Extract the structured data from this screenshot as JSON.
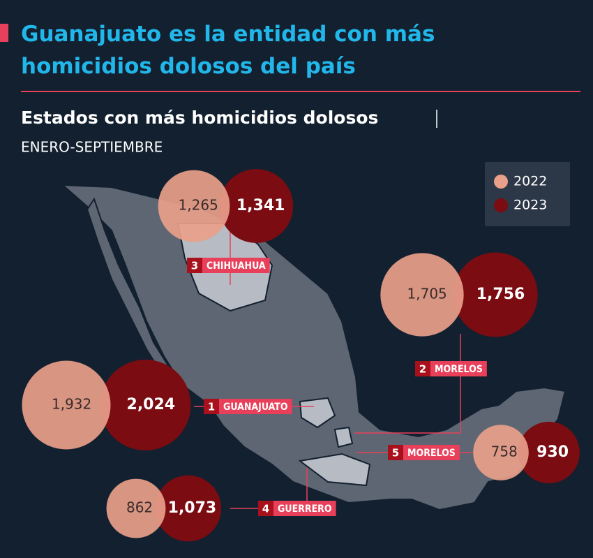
{
  "chart_data": {
    "type": "bubble-pair",
    "title": "Guanajuato es la entidad con más homicidios dolosos del país",
    "subtitle": "Estados con más homicidios dolosos",
    "period": "ENERO-SEPTIEMBRE",
    "categories": [
      "CHIHUAHUA",
      "MORELOS",
      "GUANAJUATO",
      "GUERRERO",
      "MORELOS"
    ],
    "ranks": [
      3,
      2,
      1,
      4,
      5
    ],
    "series": [
      {
        "name": "2022",
        "color": "#e8a08a",
        "values": [
          1265,
          1705,
          1932,
          862,
          758
        ],
        "value_labels": [
          "1,265",
          "1,705",
          "1,932",
          "862",
          "758"
        ]
      },
      {
        "name": "2023",
        "color": "#7a0c12",
        "values": [
          1341,
          1756,
          2024,
          1073,
          930
        ],
        "value_labels": [
          "1,341",
          "1,756",
          "2,024",
          "1,073",
          "930"
        ]
      }
    ]
  }
}
